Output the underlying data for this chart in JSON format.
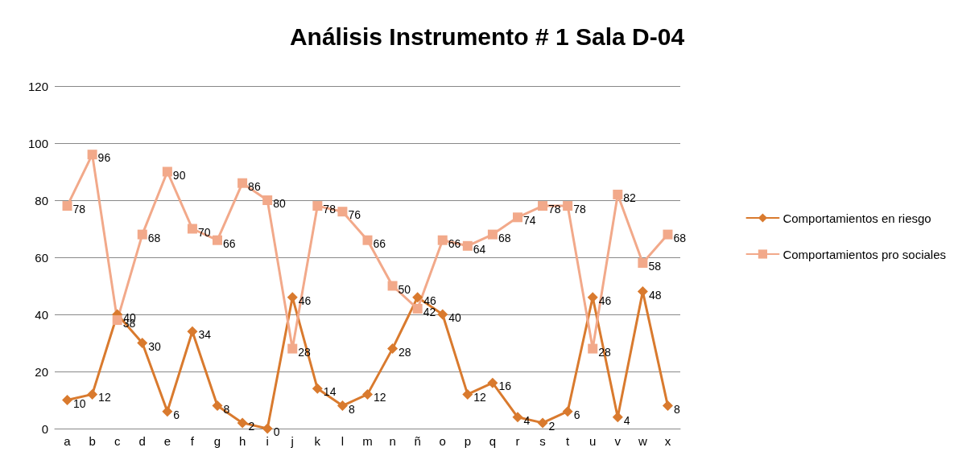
{
  "chart_data": {
    "type": "line",
    "title": "Análisis Instrumento # 1 Sala D-04",
    "categories": [
      "a",
      "b",
      "c",
      "d",
      "e",
      "f",
      "g",
      "h",
      "i",
      "j",
      "k",
      "l",
      "m",
      "n",
      "ñ",
      "o",
      "p",
      "q",
      "r",
      "s",
      "t",
      "u",
      "v",
      "w",
      "x"
    ],
    "series": [
      {
        "name": "Comportamientos en riesgo",
        "color": "#d97a2e",
        "marker": "diamond",
        "values": [
          10,
          12,
          40,
          30,
          6,
          34,
          8,
          2,
          0,
          46,
          14,
          8,
          12,
          28,
          46,
          40,
          12,
          16,
          4,
          2,
          6,
          46,
          4,
          48,
          8
        ]
      },
      {
        "name": "Comportamientos pro sociales",
        "color": "#f2a98a",
        "marker": "square",
        "values": [
          78,
          96,
          38,
          68,
          90,
          70,
          66,
          86,
          80,
          28,
          78,
          76,
          66,
          50,
          42,
          66,
          64,
          68,
          74,
          78,
          78,
          28,
          82,
          58,
          68
        ]
      }
    ],
    "ylim": [
      0,
      120
    ],
    "yticks": [
      0,
      20,
      40,
      60,
      80,
      100,
      120
    ],
    "grid": "y",
    "legend": "right",
    "data_labels": true,
    "line_style": "solid"
  }
}
